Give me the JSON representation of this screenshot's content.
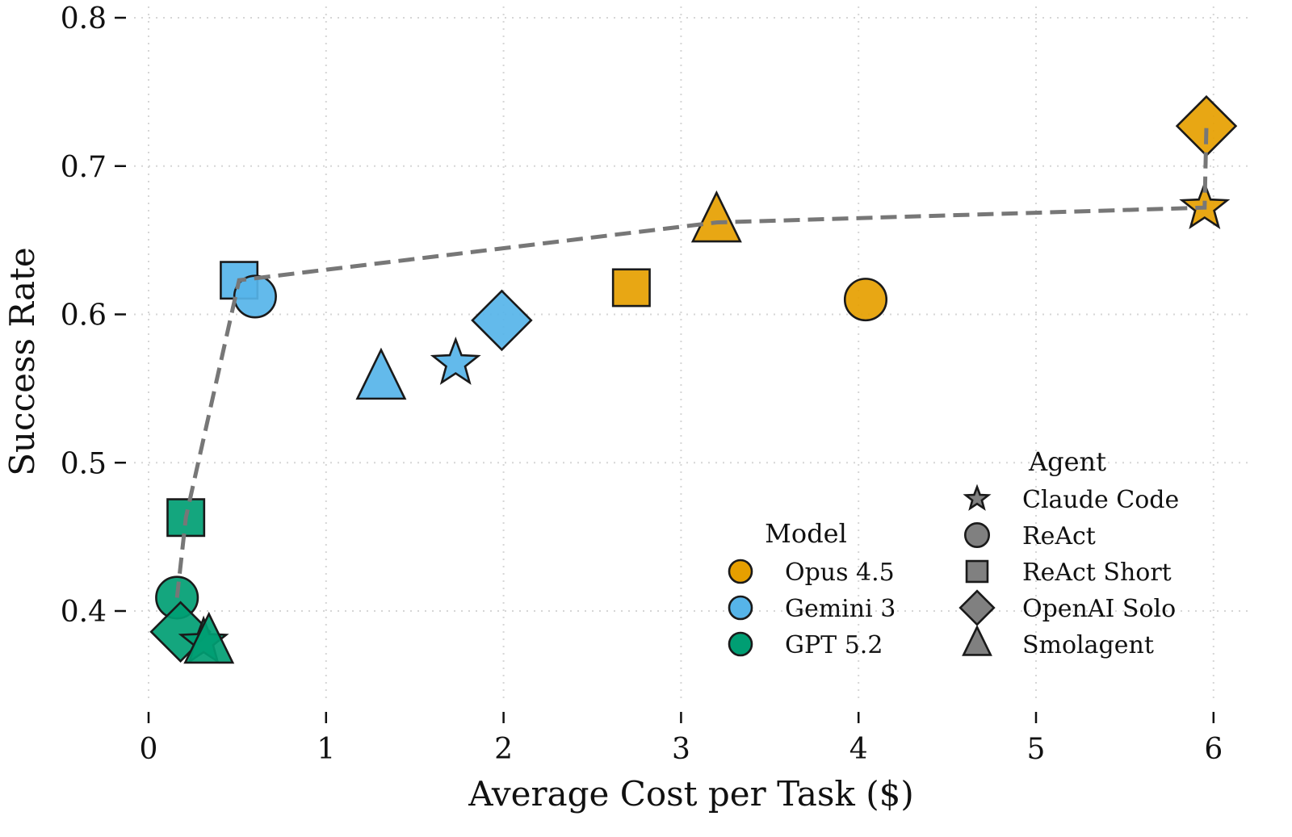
{
  "chart_data": {
    "type": "scatter",
    "title": "",
    "xlabel": "Average Cost per Task ($)",
    "ylabel": "Success Rate",
    "xlim": [
      -0.05,
      6.2
    ],
    "ylim": [
      0.335,
      0.81
    ],
    "xticks": [
      0,
      1,
      2,
      3,
      4,
      5,
      6
    ],
    "xtick_labels": [
      "0",
      "1",
      "2",
      "3",
      "4",
      "5",
      "6"
    ],
    "yticks": [
      0.4,
      0.5,
      0.6,
      0.7,
      0.8
    ],
    "ytick_labels": [
      "0.4",
      "0.5",
      "0.6",
      "0.7",
      "0.8"
    ],
    "grid": true,
    "models": [
      {
        "name": "Opus 4.5",
        "color": "#E69F00"
      },
      {
        "name": "Gemini 3",
        "color": "#56B4E9"
      },
      {
        "name": "GPT 5.2",
        "color": "#009E73"
      }
    ],
    "agents": [
      {
        "name": "Claude Code",
        "marker": "star"
      },
      {
        "name": "ReAct",
        "marker": "circle"
      },
      {
        "name": "ReAct Short",
        "marker": "square"
      },
      {
        "name": "OpenAI Solo",
        "marker": "diamond"
      },
      {
        "name": "Smolagent",
        "marker": "triangle"
      }
    ],
    "points": [
      {
        "model": "Opus 4.5",
        "agent": "OpenAI Solo",
        "x": 5.96,
        "y": 0.727
      },
      {
        "model": "Opus 4.5",
        "agent": "Claude Code",
        "x": 5.95,
        "y": 0.672
      },
      {
        "model": "Opus 4.5",
        "agent": "Smolagent",
        "x": 3.2,
        "y": 0.662
      },
      {
        "model": "Opus 4.5",
        "agent": "ReAct Short",
        "x": 2.72,
        "y": 0.618
      },
      {
        "model": "Opus 4.5",
        "agent": "ReAct",
        "x": 4.04,
        "y": 0.61
      },
      {
        "model": "Gemini 3",
        "agent": "ReAct Short",
        "x": 0.51,
        "y": 0.623
      },
      {
        "model": "Gemini 3",
        "agent": "ReAct",
        "x": 0.6,
        "y": 0.612
      },
      {
        "model": "Gemini 3",
        "agent": "OpenAI Solo",
        "x": 1.99,
        "y": 0.596
      },
      {
        "model": "Gemini 3",
        "agent": "Claude Code",
        "x": 1.73,
        "y": 0.567
      },
      {
        "model": "Gemini 3",
        "agent": "Smolagent",
        "x": 1.31,
        "y": 0.556
      },
      {
        "model": "GPT 5.2",
        "agent": "ReAct Short",
        "x": 0.21,
        "y": 0.463
      },
      {
        "model": "GPT 5.2",
        "agent": "ReAct",
        "x": 0.16,
        "y": 0.409
      },
      {
        "model": "GPT 5.2",
        "agent": "OpenAI Solo",
        "x": 0.18,
        "y": 0.386
      },
      {
        "model": "GPT 5.2",
        "agent": "Claude Code",
        "x": 0.31,
        "y": 0.379
      },
      {
        "model": "GPT 5.2",
        "agent": "Smolagent",
        "x": 0.34,
        "y": 0.378
      }
    ],
    "pareto_frontier": {
      "style": "dashed",
      "color": "#777777",
      "points": [
        {
          "x": 0.16,
          "y": 0.409
        },
        {
          "x": 0.21,
          "y": 0.463
        },
        {
          "x": 0.51,
          "y": 0.623
        },
        {
          "x": 3.2,
          "y": 0.662
        },
        {
          "x": 5.95,
          "y": 0.672
        },
        {
          "x": 5.96,
          "y": 0.727
        }
      ]
    },
    "legends": [
      {
        "title": "Model",
        "placement": "lower-right"
      },
      {
        "title": "Agent",
        "placement": "lower-right"
      }
    ],
    "legend_marker_color": "#808080"
  }
}
